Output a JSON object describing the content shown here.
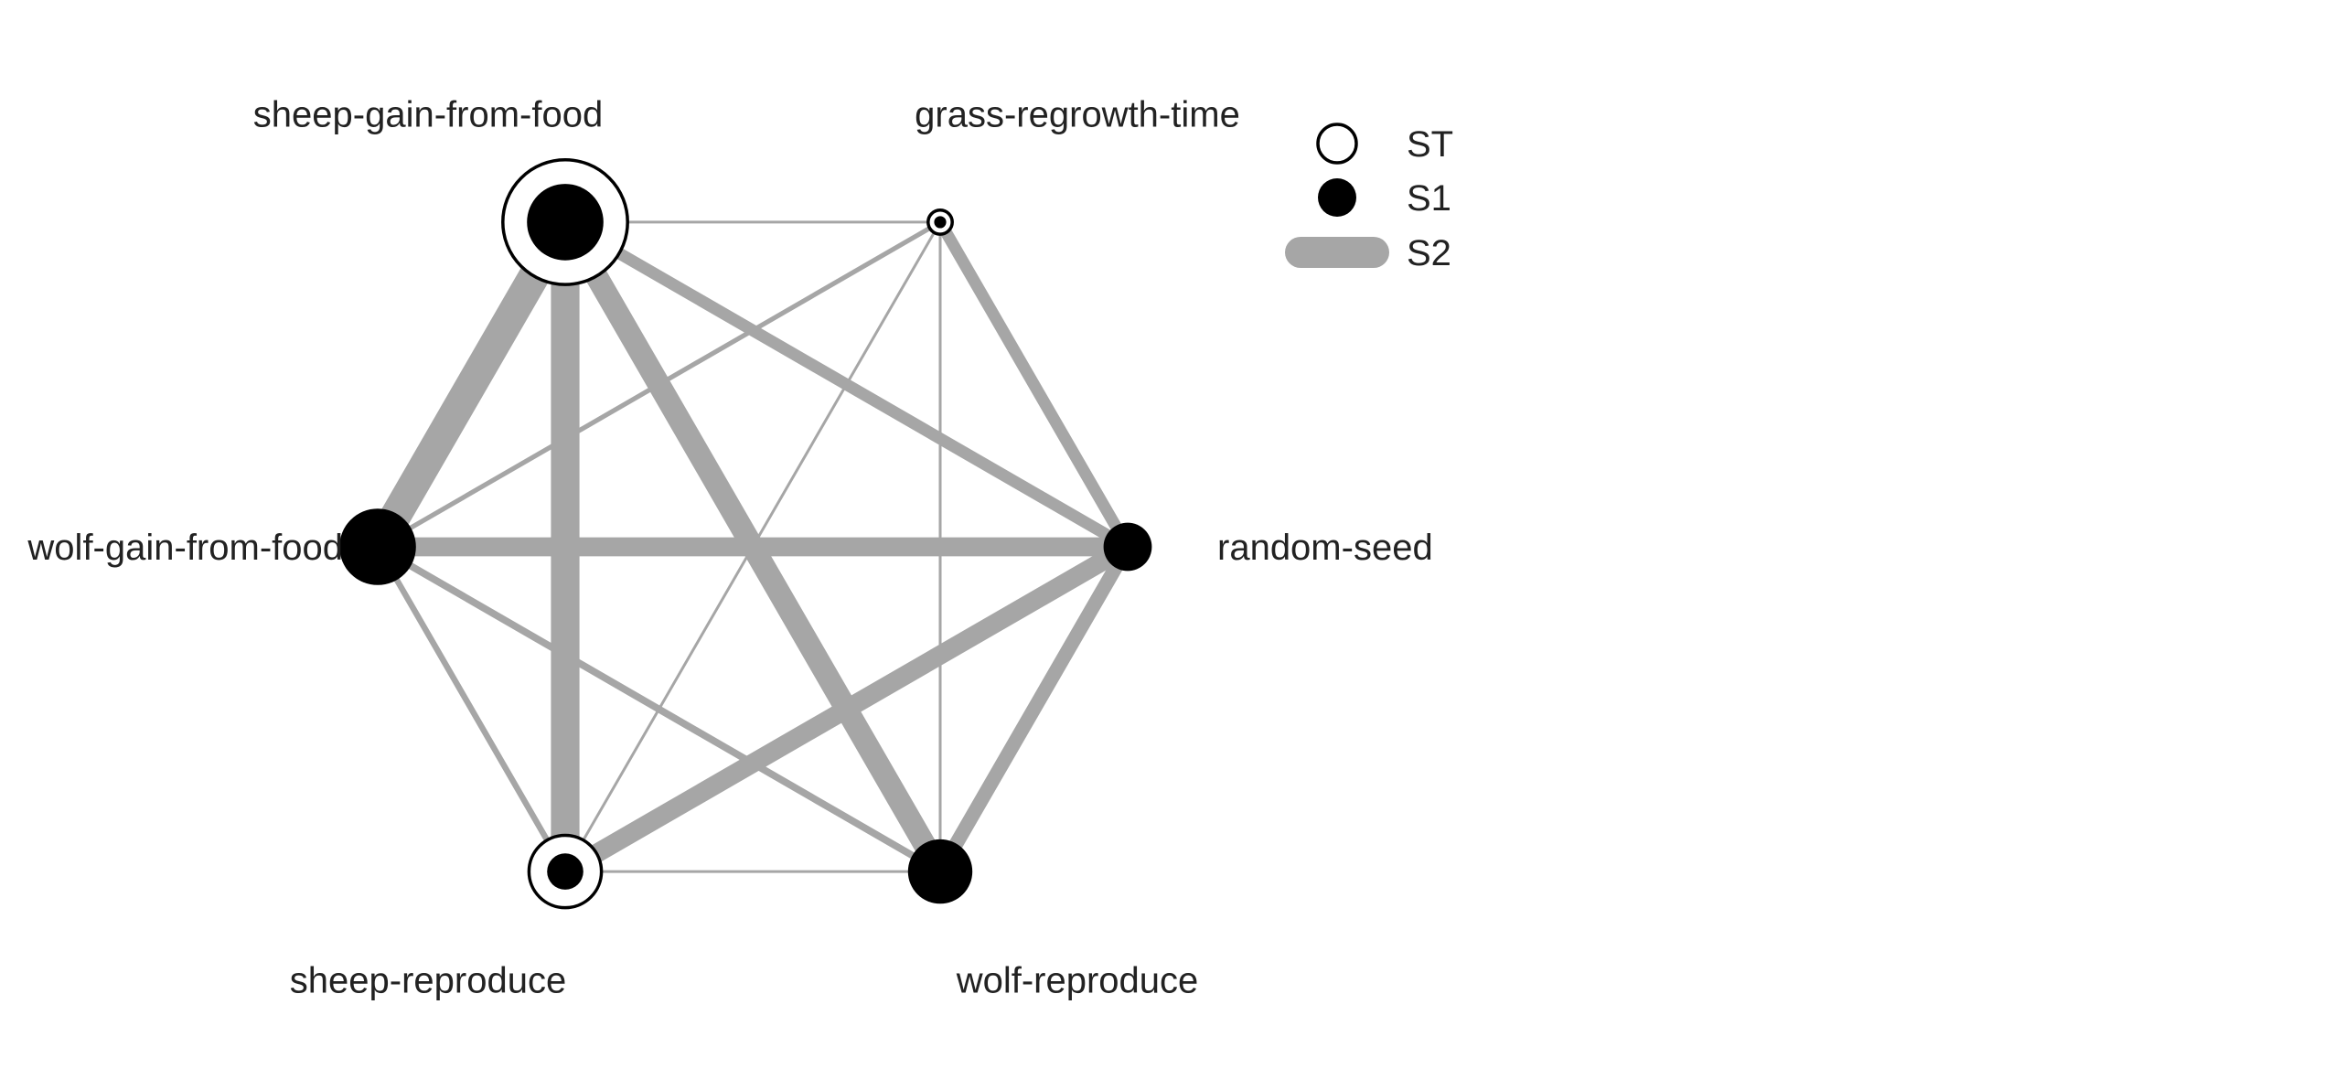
{
  "chart_data": {
    "type": "network",
    "colors": {
      "edge": "#a6a6a6",
      "node_fill": "#000000",
      "node_ring": "#ffffff"
    },
    "legend": [
      {
        "label": "ST",
        "kind": "open-circle"
      },
      {
        "label": "S1",
        "kind": "filled-circle"
      },
      {
        "label": "S2",
        "kind": "thick-line"
      }
    ],
    "nodes": [
      {
        "id": "sgf",
        "label": "sheep-gain-from-food",
        "ST": 0.31,
        "S1": 0.19
      },
      {
        "id": "grt",
        "label": "grass-regrowth-time",
        "ST": 0.06,
        "S1": 0.03
      },
      {
        "id": "rs",
        "label": "random-seed",
        "ST": 0.12,
        "S1": 0.12
      },
      {
        "id": "wr",
        "label": "wolf-reproduce",
        "ST": 0.16,
        "S1": 0.16
      },
      {
        "id": "sr",
        "label": "sheep-reproduce",
        "ST": 0.18,
        "S1": 0.09
      },
      {
        "id": "wgf",
        "label": "wolf-gain-from-food",
        "ST": 0.19,
        "S1": 0.19
      }
    ],
    "edges": [
      {
        "source": "sgf",
        "target": "wgf",
        "S2": 0.13
      },
      {
        "source": "sgf",
        "target": "sr",
        "S2": 0.12
      },
      {
        "source": "sgf",
        "target": "wr",
        "S2": 0.095
      },
      {
        "source": "sgf",
        "target": "rs",
        "S2": 0.05
      },
      {
        "source": "sgf",
        "target": "grt",
        "S2": 0.01
      },
      {
        "source": "wgf",
        "target": "rs",
        "S2": 0.08
      },
      {
        "source": "sr",
        "target": "rs",
        "S2": 0.08
      },
      {
        "source": "grt",
        "target": "rs",
        "S2": 0.05
      },
      {
        "source": "wr",
        "target": "rs",
        "S2": 0.06
      },
      {
        "source": "wgf",
        "target": "wr",
        "S2": 0.03
      },
      {
        "source": "wgf",
        "target": "sr",
        "S2": 0.025
      },
      {
        "source": "wgf",
        "target": "grt",
        "S2": 0.02
      },
      {
        "source": "sr",
        "target": "grt",
        "S2": 0.01
      },
      {
        "source": "grt",
        "target": "wr",
        "S2": 0.01
      },
      {
        "source": "sr",
        "target": "wr",
        "S2": 0.01
      }
    ]
  }
}
